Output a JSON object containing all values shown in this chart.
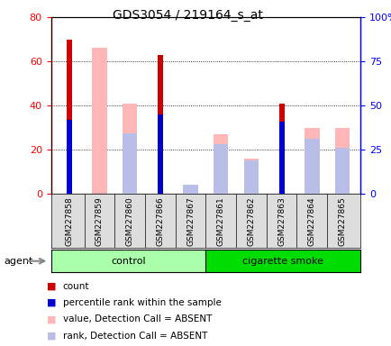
{
  "title": "GDS3054 / 219164_s_at",
  "samples": [
    "GSM227858",
    "GSM227859",
    "GSM227860",
    "GSM227866",
    "GSM227867",
    "GSM227861",
    "GSM227862",
    "GSM227863",
    "GSM227864",
    "GSM227865"
  ],
  "count_values": [
    70,
    0,
    0,
    63,
    0,
    0,
    0,
    41,
    0,
    0
  ],
  "rank_values": [
    42,
    0,
    0,
    45,
    0,
    0,
    0,
    41,
    0,
    0
  ],
  "absent_value": [
    0,
    66,
    41,
    0,
    0,
    27,
    16,
    0,
    30,
    30
  ],
  "absent_rank": [
    0,
    0,
    34,
    0,
    5,
    28,
    19,
    0,
    31,
    26
  ],
  "left_ylim": [
    0,
    80
  ],
  "right_ylim": [
    0,
    100
  ],
  "left_ticks": [
    0,
    20,
    40,
    60,
    80
  ],
  "right_ticks": [
    0,
    25,
    50,
    75,
    100
  ],
  "right_tick_labels": [
    "0",
    "25",
    "50",
    "75",
    "100%"
  ],
  "control_color_light": "#AAFFAA",
  "control_color": "#55EE55",
  "smoke_color": "#00DD00",
  "bar_width": 0.35,
  "color_count": "#CC0000",
  "color_rank": "#0000CC",
  "color_absent_value": "#FFB6B6",
  "color_absent_rank": "#B8BEE8",
  "bg_color": "#DDDDDD"
}
